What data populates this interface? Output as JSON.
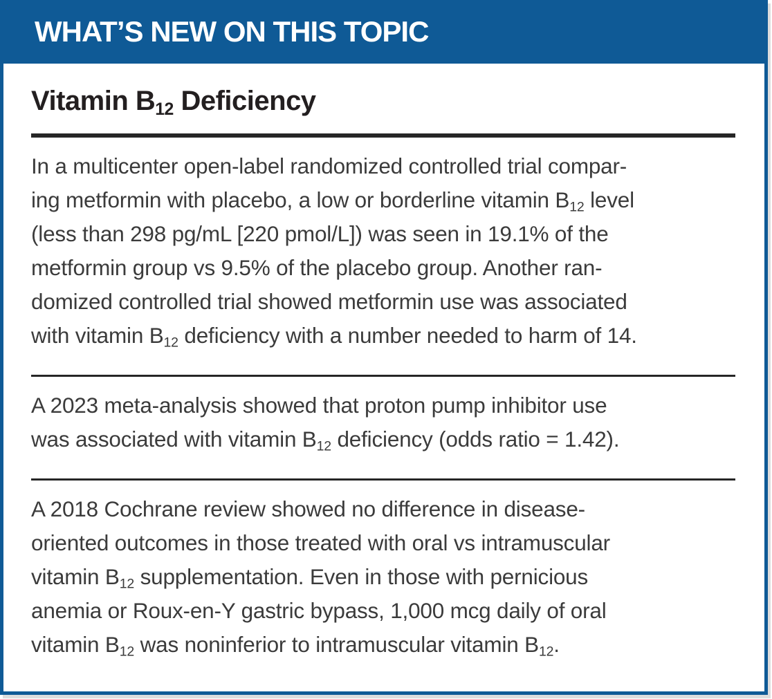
{
  "colors": {
    "band_blue": "#0F5A96",
    "heading_ink": "#231F20",
    "body_ink": "#3B3B3B",
    "rule_dark": "#262626",
    "banner_text": "#FFFFFF"
  },
  "banner": {
    "title": "WHAT’S NEW ON THIS TOPIC"
  },
  "article": {
    "heading": "Vitamin B~12~ Deficiency",
    "paragraphs": [
      {
        "lines": [
          "In a multicenter open-label randomized controlled trial compar-",
          "ing metformin with placebo, a low or borderline vitamin B~12~ level",
          "(less than 298 pg/mL [220 pmol/L]) was seen in 19.1% of the",
          "metformin group vs 9.5% of the placebo group. Another ran-",
          "domized controlled trial showed metformin use was associated",
          "with vitamin B~12~ deficiency with a number needed to harm of 14."
        ]
      },
      {
        "lines": [
          "A 2023 meta-analysis showed that proton pump inhibitor use",
          "was associated with vitamin B~12~ deficiency (odds ratio = 1.42)."
        ]
      },
      {
        "lines": [
          "A 2018 Cochrane review showed no difference in disease-",
          "oriented outcomes in those treated with oral vs intramuscular",
          "vitamin B~12~ supplementation. Even in those with pernicious",
          "anemia or Roux-en-Y gastric bypass, 1,000 mcg daily of oral",
          "vitamin B~12~ was noninferior to intramuscular vitamin B~12~."
        ]
      }
    ]
  }
}
